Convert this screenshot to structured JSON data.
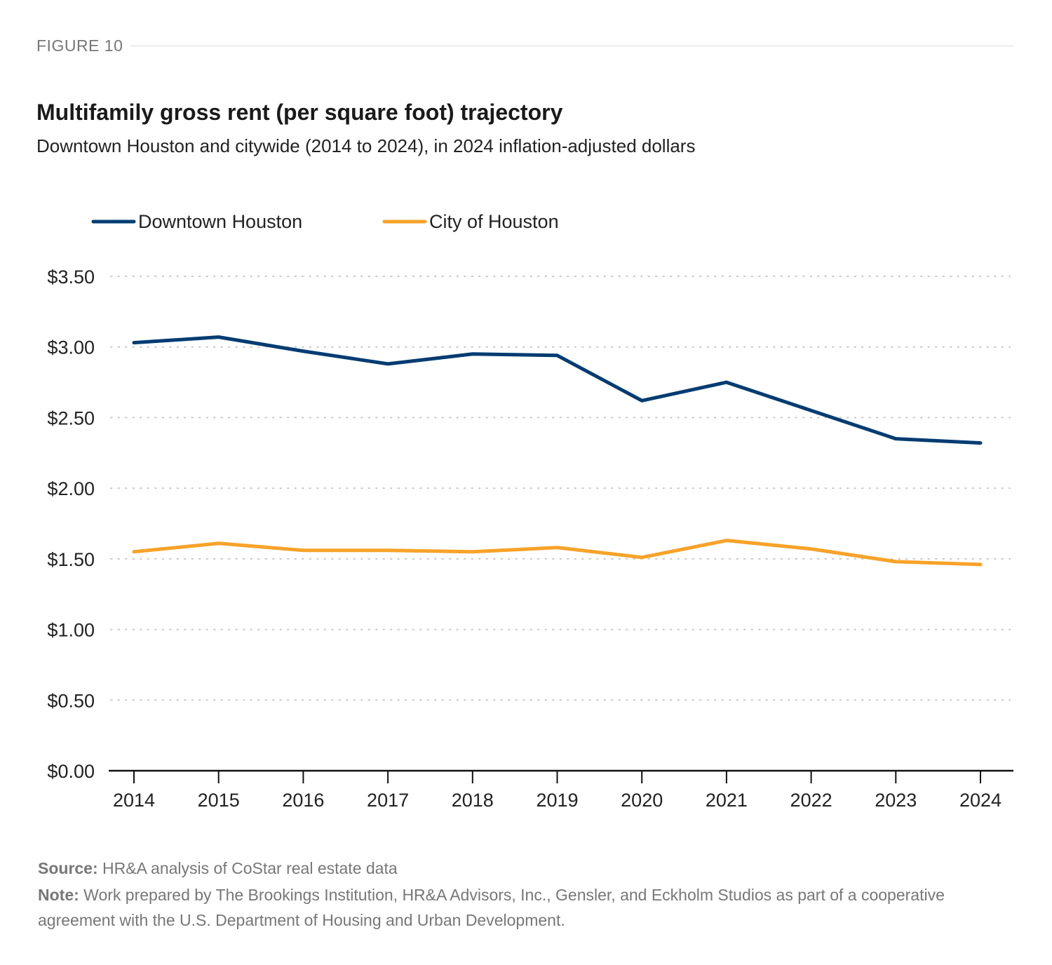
{
  "figure_label": "FIGURE 10",
  "title": "Multifamily gross rent (per square foot) trajectory",
  "subtitle": "Downtown Houston and citywide (2014 to 2024), in 2024 inflation-adjusted dollars",
  "source_label": "Source:",
  "source_text": "HR&A analysis of CoStar real estate data",
  "note_label": "Note:",
  "note_text": "Work prepared by The Brookings Institution, HR&A Advisors, Inc., Gensler, and Eckholm Studios as part of a cooperative agreement with the U.S. Department of Housing and Urban Development.",
  "chart_data": {
    "type": "line",
    "title": "Multifamily gross rent (per square foot) trajectory",
    "subtitle": "Downtown Houston and citywide (2014 to 2024), in 2024 inflation-adjusted dollars",
    "xlabel": "",
    "ylabel": "",
    "x": [
      "2014",
      "2015",
      "2016",
      "2017",
      "2018",
      "2019",
      "2020",
      "2021",
      "2022",
      "2023",
      "2024"
    ],
    "ylim": [
      0,
      3.5
    ],
    "yticks": [
      0,
      0.5,
      1.0,
      1.5,
      2.0,
      2.5,
      3.0,
      3.5
    ],
    "ytick_labels": [
      "$0.00",
      "$0.50",
      "$1.00",
      "$1.50",
      "$2.00",
      "$2.50",
      "$3.00",
      "$3.50"
    ],
    "grid": "horizontal dotted",
    "legend_position": "top-left",
    "series": [
      {
        "name": "Downtown Houston",
        "color": "#003B71",
        "values": [
          3.03,
          3.07,
          2.97,
          2.88,
          2.95,
          2.94,
          2.62,
          2.75,
          2.55,
          2.35,
          2.32
        ]
      },
      {
        "name": "City of Houston",
        "color": "#F7A229",
        "values": [
          1.55,
          1.61,
          1.56,
          1.56,
          1.55,
          1.58,
          1.51,
          1.63,
          1.57,
          1.48,
          1.46
        ]
      }
    ]
  }
}
